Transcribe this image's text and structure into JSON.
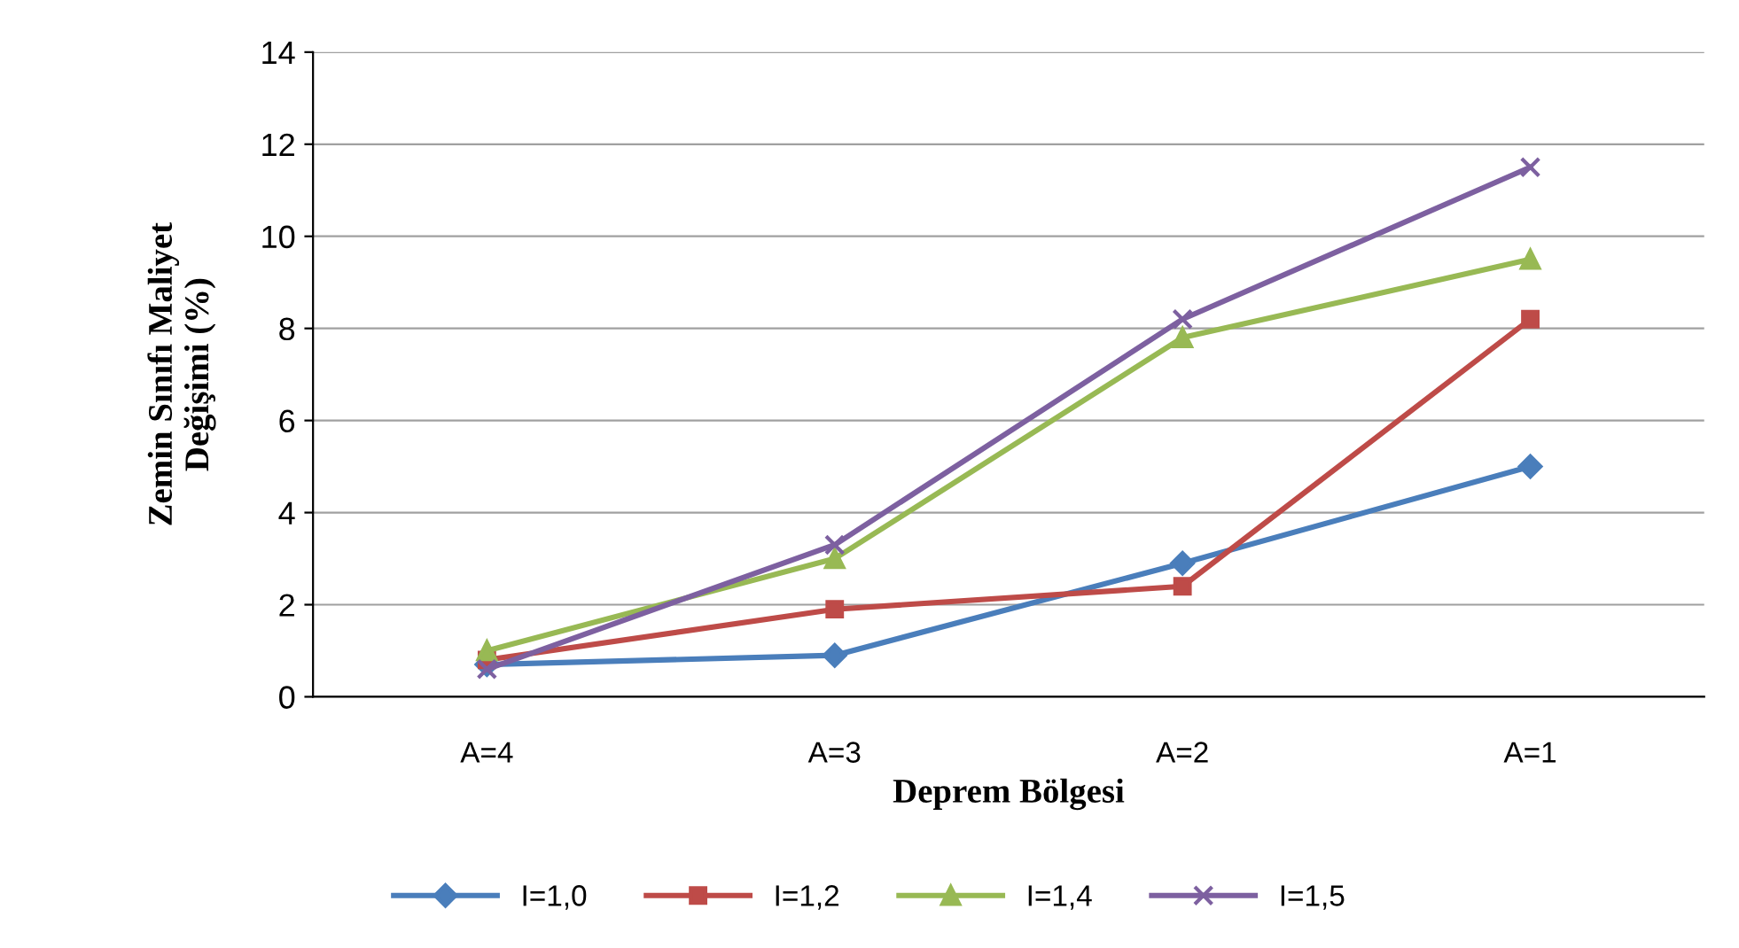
{
  "chart_data": {
    "type": "line",
    "xlabel": "Deprem Bölgesi",
    "ylabel": "Zemin Sınıfı Maliyet\nDeğişimi (%)",
    "categories": [
      "A=4",
      "A=3",
      "A=2",
      "A=1"
    ],
    "series": [
      {
        "name": "I=1,0",
        "color": "#4a7ebb",
        "marker": "diamond",
        "values": [
          0.7,
          0.9,
          2.9,
          5.0
        ]
      },
      {
        "name": "I=1,2",
        "color": "#be4b48",
        "marker": "square",
        "values": [
          0.8,
          1.9,
          2.4,
          8.2
        ]
      },
      {
        "name": "I=1,4",
        "color": "#98b954",
        "marker": "triangle",
        "values": [
          1.0,
          3.0,
          7.8,
          9.5
        ]
      },
      {
        "name": "I=1,5",
        "color": "#7d60a0",
        "marker": "cross",
        "values": [
          0.6,
          3.3,
          8.2,
          11.5
        ]
      }
    ],
    "ylim": [
      0,
      14
    ],
    "yticks": [
      0,
      2,
      4,
      6,
      8,
      10,
      12,
      14
    ],
    "grid": "y",
    "legend": "bottom",
    "line_style": "solid"
  }
}
